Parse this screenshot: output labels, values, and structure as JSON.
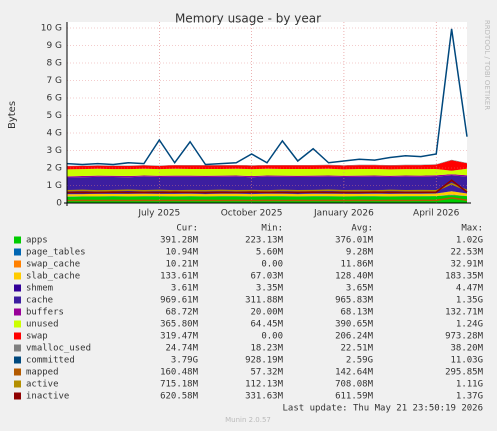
{
  "chart_data": {
    "type": "stacked_area",
    "title": "Memory usage - by year",
    "ylabel": "Bytes",
    "side_note": "RRDTOOL / TOBI OETIKER",
    "footer": "Last update: Thu May 21 23:50:19 2026",
    "credit": "Munin 2.0.57",
    "categories": [
      null,
      null,
      null,
      null,
      null,
      null,
      "July 2025",
      null,
      null,
      null,
      null,
      null,
      "October 2025",
      null,
      null,
      null,
      null,
      null,
      "January 2026",
      null,
      null,
      null,
      null,
      null,
      "April 2026",
      null,
      null
    ],
    "ylim": [
      0,
      10
    ],
    "yticks": [
      {
        "value": 0,
        "label": "0"
      },
      {
        "value": 1,
        "label": "1 G"
      },
      {
        "value": 2,
        "label": "2 G"
      },
      {
        "value": 3,
        "label": "3 G"
      },
      {
        "value": 4,
        "label": "4 G"
      },
      {
        "value": 5,
        "label": "5 G"
      },
      {
        "value": 6,
        "label": "6 G"
      },
      {
        "value": 7,
        "label": "7 G"
      },
      {
        "value": 8,
        "label": "8 G"
      },
      {
        "value": 9,
        "label": "9 G"
      },
      {
        "value": 10,
        "label": "10 G"
      }
    ],
    "grid": true,
    "stats_headers": [
      "Cur:",
      "Min:",
      "Avg:",
      "Max:"
    ],
    "series": [
      {
        "name": "apps",
        "color": "#00cc00",
        "kind": "area",
        "stats": [
          "391.28M",
          "223.13M",
          "376.01M",
          "1.02G"
        ],
        "values": [
          0.36,
          0.37,
          0.37,
          0.38,
          0.37,
          0.38,
          0.38,
          0.37,
          0.38,
          0.37,
          0.38,
          0.38,
          0.37,
          0.38,
          0.38,
          0.37,
          0.38,
          0.38,
          0.37,
          0.38,
          0.38,
          0.37,
          0.38,
          0.38,
          0.39,
          0.45,
          0.39
        ]
      },
      {
        "name": "page_tables",
        "color": "#0066b3",
        "kind": "area",
        "stats": [
          "10.94M",
          "5.60M",
          "9.28M",
          "22.53M"
        ],
        "values": [
          0.01,
          0.01,
          0.01,
          0.01,
          0.01,
          0.01,
          0.01,
          0.01,
          0.01,
          0.01,
          0.01,
          0.01,
          0.01,
          0.01,
          0.01,
          0.01,
          0.01,
          0.01,
          0.01,
          0.01,
          0.01,
          0.01,
          0.01,
          0.01,
          0.01,
          0.02,
          0.01
        ]
      },
      {
        "name": "swap_cache",
        "color": "#ff8000",
        "kind": "area",
        "stats": [
          "10.21M",
          "0.00",
          "11.86M",
          "32.91M"
        ],
        "values": [
          0.01,
          0.01,
          0.01,
          0.01,
          0.01,
          0.01,
          0.01,
          0.01,
          0.01,
          0.01,
          0.01,
          0.01,
          0.01,
          0.01,
          0.01,
          0.01,
          0.01,
          0.01,
          0.01,
          0.01,
          0.01,
          0.01,
          0.01,
          0.01,
          0.01,
          0.03,
          0.01
        ]
      },
      {
        "name": "slab_cache",
        "color": "#ffcc00",
        "kind": "area",
        "stats": [
          "133.61M",
          "67.03M",
          "128.40M",
          "183.35M"
        ],
        "values": [
          0.12,
          0.12,
          0.13,
          0.12,
          0.13,
          0.13,
          0.12,
          0.13,
          0.13,
          0.12,
          0.13,
          0.13,
          0.12,
          0.13,
          0.13,
          0.12,
          0.13,
          0.13,
          0.13,
          0.12,
          0.13,
          0.13,
          0.13,
          0.13,
          0.13,
          0.17,
          0.13
        ]
      },
      {
        "name": "shmem",
        "color": "#330099",
        "kind": "area",
        "stats": [
          "3.61M",
          "3.35M",
          "3.65M",
          "4.47M"
        ],
        "values": [
          0.004,
          0.004,
          0.004,
          0.004,
          0.004,
          0.004,
          0.004,
          0.004,
          0.004,
          0.004,
          0.004,
          0.004,
          0.004,
          0.004,
          0.004,
          0.004,
          0.004,
          0.004,
          0.004,
          0.004,
          0.004,
          0.004,
          0.004,
          0.004,
          0.004,
          0.004,
          0.004
        ]
      },
      {
        "name": "cache",
        "color": "#3c1ea0",
        "kind": "area",
        "stats": [
          "969.61M",
          "311.88M",
          "965.83M",
          "1.35G"
        ],
        "values": [
          0.95,
          0.96,
          0.97,
          0.96,
          0.95,
          0.97,
          0.96,
          0.97,
          0.96,
          0.97,
          0.96,
          0.97,
          0.96,
          0.97,
          0.96,
          0.97,
          0.96,
          0.97,
          0.96,
          0.97,
          0.97,
          0.96,
          0.97,
          0.96,
          0.97,
          0.9,
          0.97
        ]
      },
      {
        "name": "buffers",
        "color": "#990099",
        "kind": "area",
        "stats": [
          "68.72M",
          "20.00M",
          "68.13M",
          "132.71M"
        ],
        "values": [
          0.07,
          0.07,
          0.07,
          0.07,
          0.07,
          0.07,
          0.07,
          0.07,
          0.07,
          0.07,
          0.07,
          0.07,
          0.07,
          0.07,
          0.07,
          0.07,
          0.07,
          0.07,
          0.07,
          0.07,
          0.07,
          0.07,
          0.07,
          0.07,
          0.07,
          0.07,
          0.07
        ]
      },
      {
        "name": "unused",
        "color": "#ccff00",
        "kind": "area",
        "stats": [
          "365.80M",
          "64.45M",
          "390.65M",
          "1.24G"
        ],
        "values": [
          0.4,
          0.39,
          0.39,
          0.38,
          0.39,
          0.38,
          0.38,
          0.39,
          0.38,
          0.39,
          0.38,
          0.38,
          0.39,
          0.38,
          0.38,
          0.39,
          0.38,
          0.38,
          0.37,
          0.38,
          0.37,
          0.37,
          0.36,
          0.37,
          0.36,
          0.2,
          0.37
        ]
      },
      {
        "name": "swap",
        "color": "#ff0000",
        "kind": "area",
        "stats": [
          "319.47M",
          "0.00",
          "206.24M",
          "973.28M"
        ],
        "values": [
          0.18,
          0.18,
          0.18,
          0.19,
          0.19,
          0.19,
          0.19,
          0.2,
          0.2,
          0.2,
          0.2,
          0.2,
          0.2,
          0.2,
          0.21,
          0.21,
          0.21,
          0.21,
          0.21,
          0.22,
          0.22,
          0.22,
          0.23,
          0.23,
          0.25,
          0.6,
          0.32
        ]
      },
      {
        "name": "vmalloc_used",
        "color": "#808080",
        "kind": "area",
        "stats": [
          "24.74M",
          "18.23M",
          "22.51M",
          "38.20M"
        ],
        "values": [
          0.02,
          0.02,
          0.02,
          0.02,
          0.02,
          0.02,
          0.02,
          0.02,
          0.02,
          0.02,
          0.02,
          0.02,
          0.02,
          0.02,
          0.02,
          0.02,
          0.02,
          0.02,
          0.02,
          0.02,
          0.02,
          0.02,
          0.02,
          0.02,
          0.02,
          0.03,
          0.02
        ]
      },
      {
        "name": "committed",
        "color": "#00487d",
        "kind": "line",
        "stats": [
          "3.79G",
          "928.19M",
          "2.59G",
          "11.03G"
        ],
        "values": [
          2.25,
          2.2,
          2.25,
          2.2,
          2.3,
          2.25,
          3.6,
          2.3,
          3.5,
          2.2,
          2.25,
          2.3,
          2.8,
          2.3,
          3.55,
          2.4,
          3.1,
          2.3,
          2.4,
          2.5,
          2.45,
          2.6,
          2.7,
          2.65,
          2.8,
          9.95,
          3.79
        ]
      },
      {
        "name": "mapped",
        "color": "#b35a00",
        "kind": "line",
        "stats": [
          "160.48M",
          "57.32M",
          "142.64M",
          "295.85M"
        ],
        "values": [
          0.14,
          0.15,
          0.14,
          0.15,
          0.14,
          0.15,
          0.14,
          0.15,
          0.14,
          0.15,
          0.14,
          0.15,
          0.14,
          0.15,
          0.14,
          0.15,
          0.14,
          0.15,
          0.14,
          0.15,
          0.14,
          0.15,
          0.14,
          0.15,
          0.15,
          0.29,
          0.16
        ]
      },
      {
        "name": "active",
        "color": "#b38f00",
        "kind": "line",
        "stats": [
          "715.18M",
          "112.13M",
          "708.08M",
          "1.11G"
        ],
        "values": [
          0.7,
          0.72,
          0.69,
          0.71,
          0.73,
          0.7,
          0.72,
          0.69,
          0.71,
          0.7,
          0.72,
          0.7,
          0.71,
          0.69,
          0.72,
          0.7,
          0.71,
          0.73,
          0.7,
          0.71,
          0.69,
          0.72,
          0.7,
          0.71,
          0.7,
          1.1,
          0.72
        ]
      },
      {
        "name": "inactive",
        "color": "#8f0000",
        "kind": "line",
        "stats": [
          "620.58M",
          "331.63M",
          "611.59M",
          "1.37G"
        ],
        "values": [
          0.6,
          0.61,
          0.6,
          0.62,
          0.6,
          0.61,
          0.6,
          0.62,
          0.61,
          0.6,
          0.61,
          0.6,
          0.62,
          0.61,
          0.6,
          0.61,
          0.62,
          0.6,
          0.61,
          0.6,
          0.62,
          0.61,
          0.6,
          0.61,
          0.62,
          1.3,
          0.62
        ]
      }
    ]
  }
}
